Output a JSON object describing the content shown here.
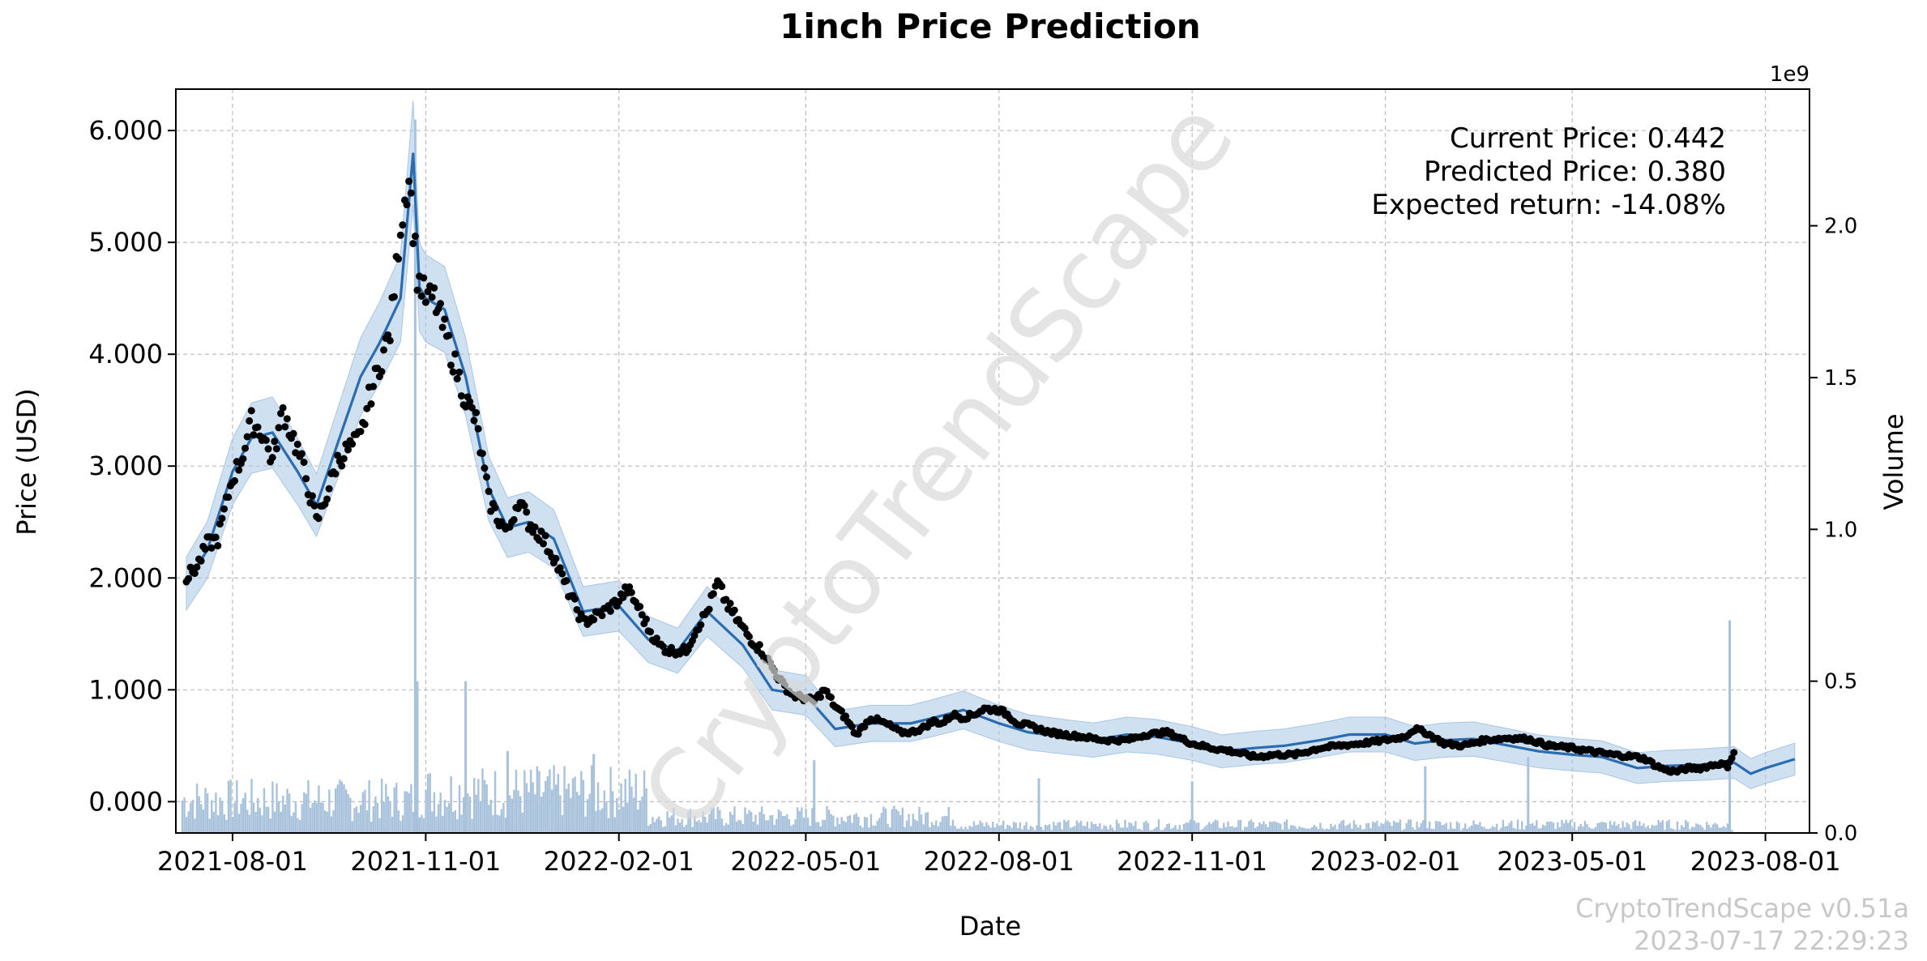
{
  "chart_data": {
    "type": "line",
    "title": "1inch Price Prediction",
    "xlabel": "Date",
    "ylabel": "Price (USD)",
    "y2label": "Volume",
    "y2_offset_label": "1e9",
    "ylim": [
      -0.28,
      6.37
    ],
    "y2lim": [
      0,
      2.45
    ],
    "xlim": [
      "2021-07-05",
      "2023-08-22"
    ],
    "yticks": [
      0.0,
      1.0,
      2.0,
      3.0,
      4.0,
      5.0,
      6.0
    ],
    "ytick_labels": [
      "0.000",
      "1.000",
      "2.000",
      "3.000",
      "4.000",
      "5.000",
      "6.000"
    ],
    "y2ticks": [
      0.0,
      0.5,
      1.0,
      1.5,
      2.0
    ],
    "y2tick_labels": [
      "0.0",
      "0.5",
      "1.0",
      "1.5",
      "2.0"
    ],
    "xticks": [
      "2021-08-01",
      "2021-11-01",
      "2022-02-01",
      "2022-05-01",
      "2022-08-01",
      "2022-11-01",
      "2023-02-01",
      "2023-05-01",
      "2023-08-01"
    ],
    "grid": true,
    "colors": {
      "actual": "#000000",
      "forecast": "#2b6cb0",
      "band": "#a8c6e6",
      "volume": "#a9c2dc",
      "watermark": "#d9d9d9",
      "footer": "#c8c8c8"
    },
    "series": [
      {
        "role": "forecast",
        "x": [
          "2021-07-10",
          "2021-07-20",
          "2021-08-01",
          "2021-08-10",
          "2021-08-20",
          "2021-09-01",
          "2021-09-10",
          "2021-09-20",
          "2021-10-01",
          "2021-10-10",
          "2021-10-20",
          "2021-10-26",
          "2021-10-29",
          "2021-11-01",
          "2021-11-10",
          "2021-11-20",
          "2021-12-01",
          "2021-12-10",
          "2021-12-20",
          "2022-01-01",
          "2022-01-15",
          "2022-02-01",
          "2022-02-15",
          "2022-03-01",
          "2022-03-15",
          "2022-04-01",
          "2022-04-15",
          "2022-05-01",
          "2022-05-15",
          "2022-06-01",
          "2022-06-20",
          "2022-07-01",
          "2022-07-15",
          "2022-08-01",
          "2022-08-15",
          "2022-09-01",
          "2022-09-15",
          "2022-10-01",
          "2022-10-15",
          "2022-11-01",
          "2022-11-15",
          "2022-12-01",
          "2022-12-15",
          "2023-01-01",
          "2023-01-15",
          "2023-02-01",
          "2023-02-15",
          "2023-03-01",
          "2023-03-15",
          "2023-04-01",
          "2023-04-15",
          "2023-05-01",
          "2023-05-15",
          "2023-06-01",
          "2023-06-15",
          "2023-07-01",
          "2023-07-17",
          "2023-07-25",
          "2023-08-01",
          "2023-08-15"
        ],
        "y": [
          1.95,
          2.25,
          2.95,
          3.25,
          3.3,
          2.95,
          2.65,
          3.2,
          3.8,
          4.1,
          4.5,
          5.8,
          4.6,
          4.5,
          4.4,
          3.8,
          2.8,
          2.45,
          2.5,
          2.35,
          1.7,
          1.75,
          1.45,
          1.35,
          1.7,
          1.4,
          1.0,
          0.95,
          0.65,
          0.7,
          0.7,
          0.75,
          0.82,
          0.7,
          0.62,
          0.58,
          0.55,
          0.6,
          0.58,
          0.52,
          0.45,
          0.48,
          0.5,
          0.55,
          0.6,
          0.6,
          0.52,
          0.55,
          0.56,
          0.5,
          0.45,
          0.42,
          0.4,
          0.3,
          0.32,
          0.33,
          0.35,
          0.25,
          0.3,
          0.38
        ]
      },
      {
        "role": "actual",
        "x": [
          "2021-07-10",
          "2021-07-15",
          "2021-07-20",
          "2021-07-25",
          "2021-08-01",
          "2021-08-05",
          "2021-08-10",
          "2021-08-15",
          "2021-08-20",
          "2021-08-25",
          "2021-09-01",
          "2021-09-05",
          "2021-09-10",
          "2021-09-15",
          "2021-09-20",
          "2021-09-25",
          "2021-10-01",
          "2021-10-05",
          "2021-10-10",
          "2021-10-15",
          "2021-10-20",
          "2021-10-24",
          "2021-10-28",
          "2021-10-30",
          "2021-11-01",
          "2021-11-05",
          "2021-11-10",
          "2021-11-15",
          "2021-11-20",
          "2021-11-25",
          "2021-12-01",
          "2021-12-05",
          "2021-12-10",
          "2021-12-15",
          "2021-12-20",
          "2021-12-25",
          "2022-01-01",
          "2022-01-05",
          "2022-01-10",
          "2022-01-15",
          "2022-01-20",
          "2022-01-25",
          "2022-02-01",
          "2022-02-05",
          "2022-02-10",
          "2022-02-15",
          "2022-02-20",
          "2022-02-25",
          "2022-03-01",
          "2022-03-05",
          "2022-03-10",
          "2022-03-15",
          "2022-03-20",
          "2022-03-25",
          "2022-04-01",
          "2022-04-05",
          "2022-04-10",
          "2022-04-15",
          "2022-04-20",
          "2022-04-25",
          "2022-05-01",
          "2022-05-05",
          "2022-05-10",
          "2022-05-15",
          "2022-05-20",
          "2022-05-25",
          "2022-06-01",
          "2022-06-05",
          "2022-06-10",
          "2022-06-15",
          "2022-06-20",
          "2022-06-25",
          "2022-07-01",
          "2022-07-05",
          "2022-07-10",
          "2022-07-15",
          "2022-07-20",
          "2022-07-25",
          "2022-08-01",
          "2022-08-05",
          "2022-08-10",
          "2022-08-15",
          "2022-08-20",
          "2022-08-25",
          "2022-09-01",
          "2022-09-10",
          "2022-09-20",
          "2022-10-01",
          "2022-10-10",
          "2022-10-20",
          "2022-11-01",
          "2022-11-10",
          "2022-11-20",
          "2022-12-01",
          "2022-12-10",
          "2022-12-20",
          "2023-01-01",
          "2023-01-10",
          "2023-01-20",
          "2023-02-01",
          "2023-02-10",
          "2023-02-15",
          "2023-02-20",
          "2023-03-01",
          "2023-03-10",
          "2023-03-20",
          "2023-04-01",
          "2023-04-10",
          "2023-04-20",
          "2023-05-01",
          "2023-05-10",
          "2023-05-20",
          "2023-06-01",
          "2023-06-05",
          "2023-06-10",
          "2023-06-15",
          "2023-06-20",
          "2023-06-25",
          "2023-07-01",
          "2023-07-05",
          "2023-07-10",
          "2023-07-14",
          "2023-07-17"
        ],
        "y": [
          2.0,
          2.1,
          2.3,
          2.35,
          2.9,
          3.05,
          3.4,
          3.3,
          3.05,
          3.5,
          3.15,
          2.9,
          2.5,
          2.75,
          3.05,
          3.15,
          3.25,
          3.6,
          3.9,
          4.2,
          5.15,
          5.6,
          4.7,
          4.6,
          4.5,
          4.5,
          4.2,
          3.9,
          3.6,
          3.4,
          2.7,
          2.55,
          2.4,
          2.7,
          2.5,
          2.4,
          2.2,
          2.0,
          1.8,
          1.6,
          1.65,
          1.7,
          1.8,
          1.9,
          1.75,
          1.55,
          1.4,
          1.35,
          1.35,
          1.35,
          1.55,
          1.7,
          1.95,
          1.75,
          1.55,
          1.45,
          1.35,
          1.2,
          1.05,
          0.95,
          0.92,
          0.9,
          1.0,
          0.85,
          0.75,
          0.6,
          0.75,
          0.72,
          0.68,
          0.62,
          0.62,
          0.65,
          0.72,
          0.7,
          0.78,
          0.75,
          0.78,
          0.83,
          0.82,
          0.78,
          0.7,
          0.68,
          0.65,
          0.62,
          0.6,
          0.58,
          0.55,
          0.55,
          0.6,
          0.62,
          0.52,
          0.48,
          0.45,
          0.4,
          0.42,
          0.42,
          0.48,
          0.5,
          0.52,
          0.55,
          0.58,
          0.65,
          0.62,
          0.52,
          0.5,
          0.55,
          0.57,
          0.56,
          0.5,
          0.48,
          0.45,
          0.42,
          0.4,
          0.38,
          0.32,
          0.28,
          0.27,
          0.3,
          0.3,
          0.32,
          0.34,
          0.32,
          0.44
        ]
      }
    ],
    "volume_spikes": [
      {
        "x": "2021-10-27",
        "v": 2.35
      },
      {
        "x": "2021-10-28",
        "v": 0.5
      },
      {
        "x": "2021-11-20",
        "v": 0.5
      },
      {
        "x": "2021-12-10",
        "v": 0.27
      },
      {
        "x": "2022-01-20",
        "v": 0.26
      },
      {
        "x": "2022-05-05",
        "v": 0.24
      },
      {
        "x": "2022-08-20",
        "v": 0.18
      },
      {
        "x": "2022-11-01",
        "v": 0.17
      },
      {
        "x": "2023-02-20",
        "v": 0.22
      },
      {
        "x": "2023-04-10",
        "v": 0.25
      },
      {
        "x": "2023-07-15",
        "v": 0.7
      }
    ],
    "annotation": [
      "Current Price: 0.442",
      "Predicted Price: 0.380",
      "Expected return: -14.08%"
    ]
  },
  "watermark": "CryptoTrendScape",
  "footer": {
    "version": "CryptoTrendScape v0.51a",
    "timestamp": "2023-07-17 22:29:23"
  }
}
